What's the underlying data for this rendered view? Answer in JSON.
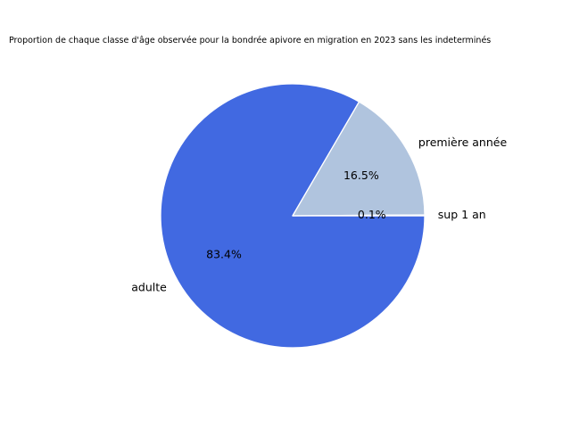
{
  "chart_data": {
    "type": "pie",
    "title": "Proportion de chaque classe d'âge observée pour la bondrée apivore en migration en 2023 sans les indeterminés",
    "slices": [
      {
        "label": "adulte",
        "value": 83.4,
        "pct_label": "83.4%",
        "color": "#4169e1"
      },
      {
        "label": "première année",
        "value": 16.5,
        "pct_label": "16.5%",
        "color": "#b0c4de"
      },
      {
        "label": "sup 1 an",
        "value": 0.1,
        "pct_label": "0.1%",
        "color": "#4169e1"
      }
    ],
    "start_angle_deg": 0,
    "direction": "clockwise",
    "edge_color": "#ffffff"
  }
}
